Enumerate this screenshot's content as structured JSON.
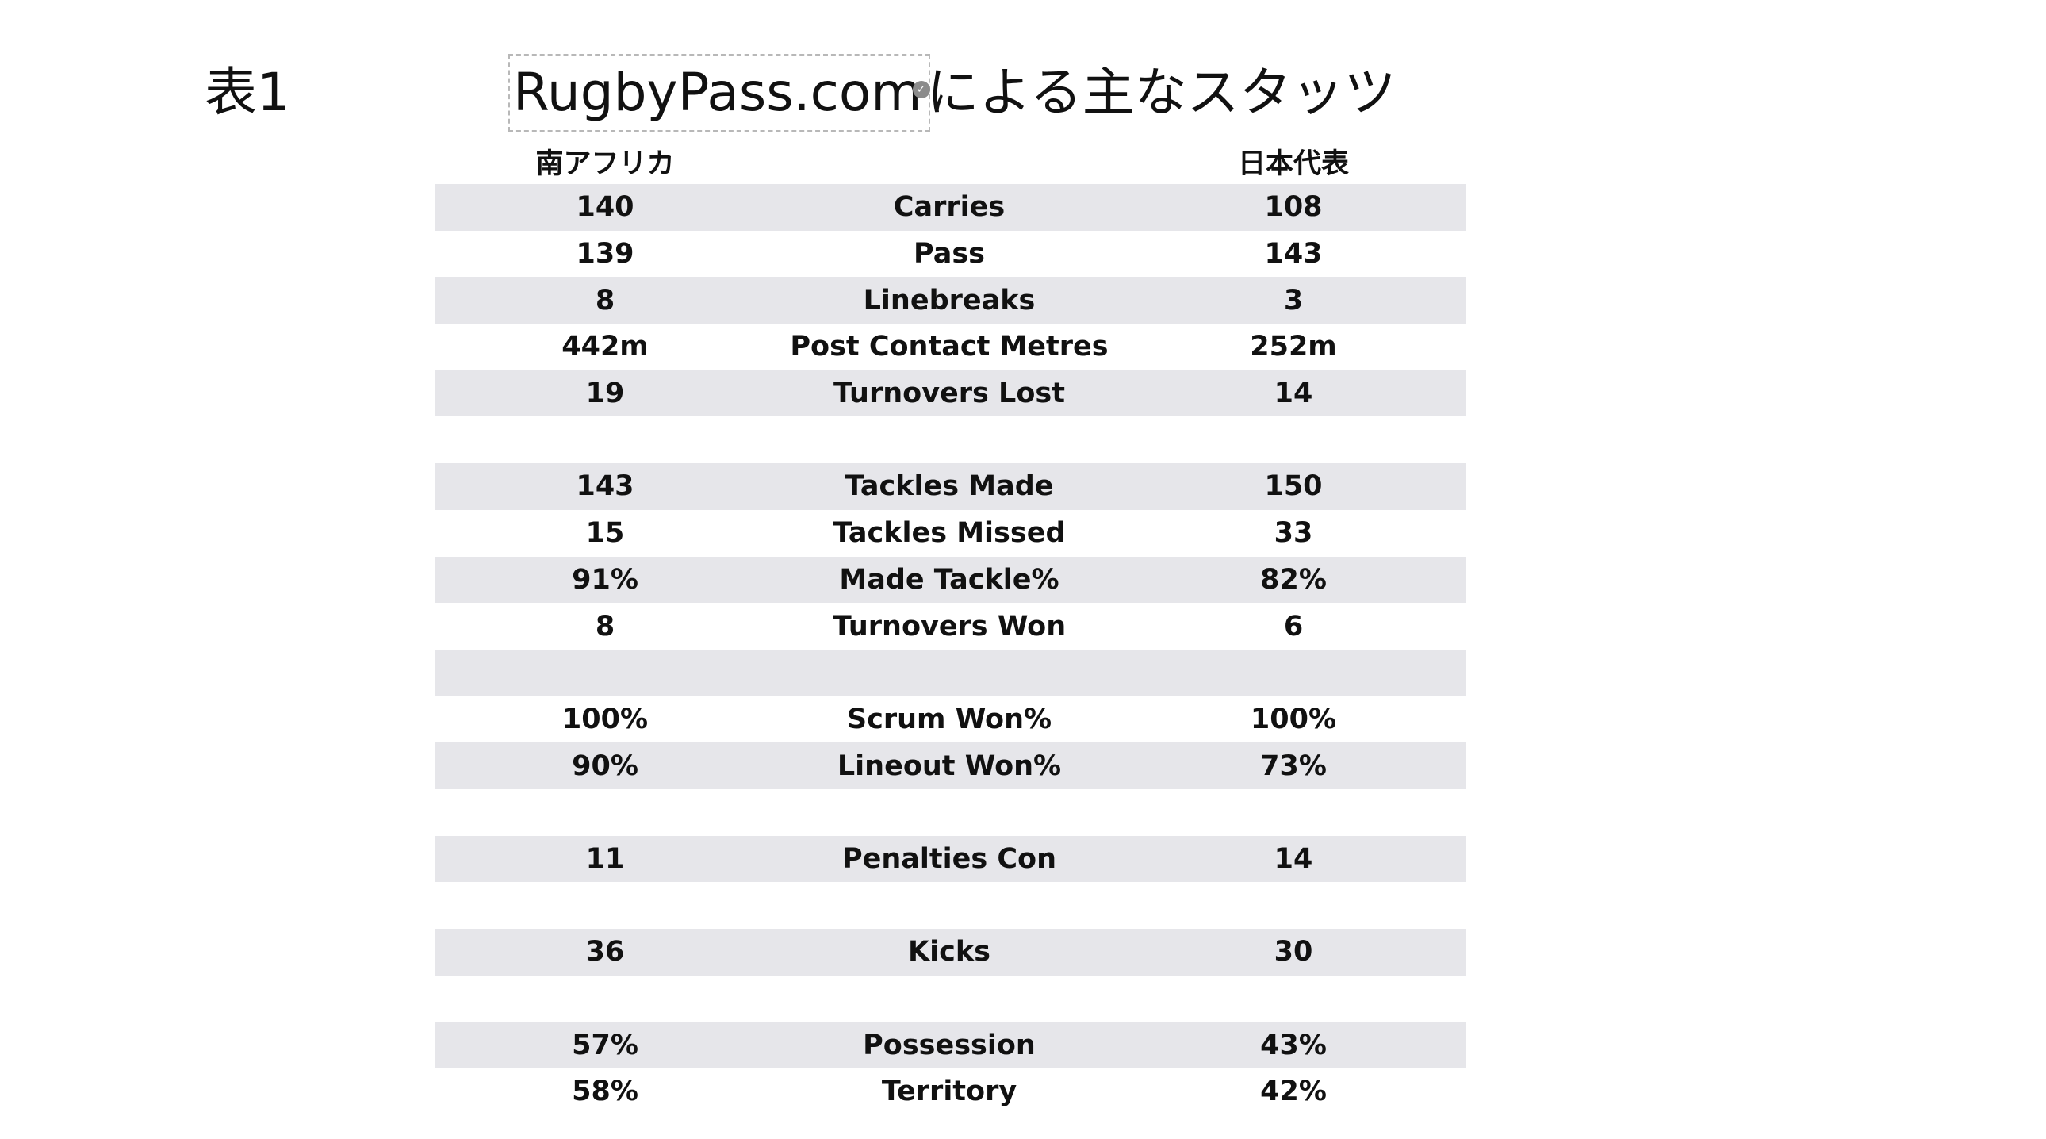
{
  "page": {
    "table_number": "表1",
    "title_link": "RugbyPass.com",
    "title_suffix": "による主なスタッツ"
  },
  "teams": {
    "left": "南アフリカ",
    "right": "日本代表"
  },
  "rows": [
    {
      "left": "140",
      "label": "Carries",
      "right": "108"
    },
    {
      "left": "139",
      "label": "Pass",
      "right": "143"
    },
    {
      "left": "8",
      "label": "Linebreaks",
      "right": "3"
    },
    {
      "left": "442m",
      "label": "Post Contact Metres",
      "right": "252m"
    },
    {
      "left": "19",
      "label": "Turnovers Lost",
      "right": "14"
    },
    {
      "left": "",
      "label": "",
      "right": ""
    },
    {
      "left": "143",
      "label": "Tackles Made",
      "right": "150"
    },
    {
      "left": "15",
      "label": "Tackles Missed",
      "right": "33"
    },
    {
      "left": "91%",
      "label": "Made Tackle%",
      "right": "82%"
    },
    {
      "left": "8",
      "label": "Turnovers Won",
      "right": "6"
    },
    {
      "left": "",
      "label": "",
      "right": ""
    },
    {
      "left": "100%",
      "label": "Scrum Won%",
      "right": "100%"
    },
    {
      "left": "90%",
      "label": "Lineout Won%",
      "right": "73%"
    },
    {
      "left": "",
      "label": "",
      "right": ""
    },
    {
      "left": "11",
      "label": "Penalties Con",
      "right": "14"
    },
    {
      "left": "",
      "label": "",
      "right": ""
    },
    {
      "left": "36",
      "label": "Kicks",
      "right": "30"
    },
    {
      "left": "",
      "label": "",
      "right": ""
    },
    {
      "left": "57%",
      "label": "Possession",
      "right": "43%"
    },
    {
      "left": "58%",
      "label": "Territory",
      "right": "42%"
    }
  ],
  "colors": {
    "shaded_row": "#e6e6ea",
    "text": "#111111"
  }
}
